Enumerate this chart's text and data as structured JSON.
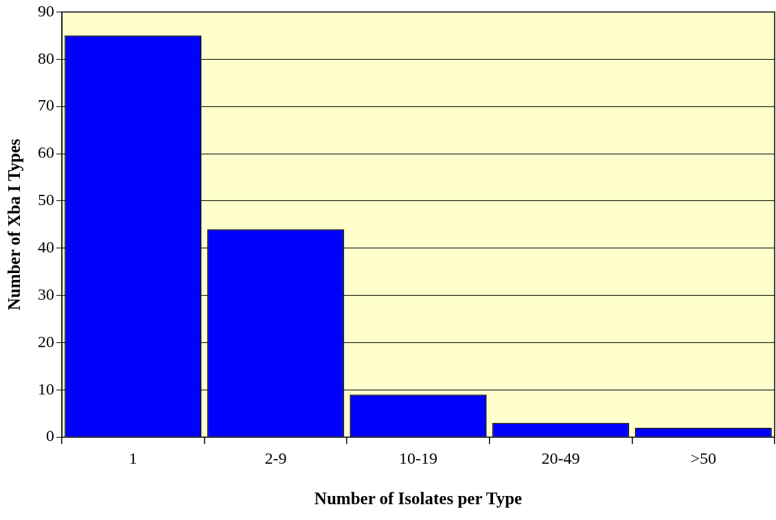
{
  "chart_data": {
    "type": "bar",
    "xlabel": "Number of Isolates per Type",
    "ylabel": "Number of Xba I Types",
    "categories": [
      "1",
      "2-9",
      "10-19",
      "20-49",
      ">50"
    ],
    "values": [
      85,
      44,
      9,
      3,
      2
    ],
    "color": "#0000ff",
    "ylim": [
      0,
      90
    ],
    "yticks": [
      0,
      10,
      20,
      30,
      40,
      50,
      60,
      70,
      80,
      90
    ],
    "grid": "y",
    "legend": false
  }
}
